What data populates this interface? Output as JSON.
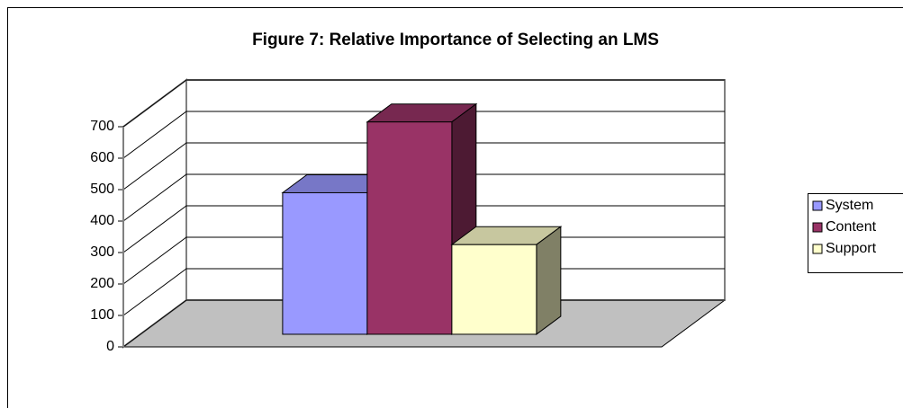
{
  "chart_data": {
    "type": "bar",
    "title": "Figure 7: Relative Importance of Selecting an LMS",
    "categories": [
      null
    ],
    "series": [
      {
        "name": "System",
        "color": "#9999ff",
        "values": [
          450
        ]
      },
      {
        "name": "Content",
        "color": "#993366",
        "values": [
          675
        ]
      },
      {
        "name": "Support",
        "color": "#ffffcc",
        "values": [
          285
        ]
      }
    ],
    "ylim": [
      0,
      700
    ],
    "yticks": [
      0,
      100,
      200,
      300,
      400,
      500,
      600,
      700
    ],
    "grid": true,
    "legend": "right"
  }
}
